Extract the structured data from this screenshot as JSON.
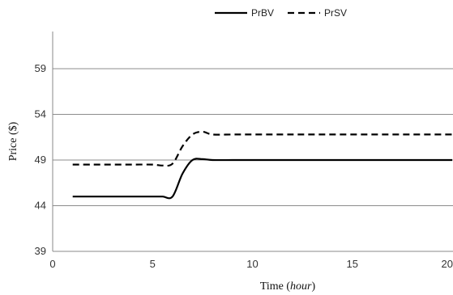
{
  "chart_data": {
    "type": "line",
    "xlabel": "Time",
    "xlabel_unit": "hour",
    "ylabel": "Price ($)",
    "xlim": [
      0,
      20
    ],
    "ylim": [
      39,
      64
    ],
    "x_ticks": [
      "0",
      "5",
      "10",
      "15",
      "20"
    ],
    "y_ticks": [
      "39",
      "44",
      "49",
      "54",
      "59"
    ],
    "grid": "horizontal",
    "legend": "top-center",
    "series": [
      {
        "name": "PrBV",
        "style": "solid",
        "color": "#000000",
        "x": [
          1,
          2,
          3,
          4,
          5,
          5.5,
          6,
          6.5,
          7,
          7.5,
          8,
          9,
          10,
          12,
          14,
          16,
          18,
          20
        ],
        "y": [
          45,
          45,
          45,
          45,
          45,
          45,
          45,
          47.5,
          49,
          49.1,
          49,
          49,
          49,
          49,
          49,
          49,
          49,
          49
        ]
      },
      {
        "name": "PrSV",
        "style": "dashed",
        "color": "#000000",
        "x": [
          1,
          2,
          3,
          4,
          5,
          5.5,
          6,
          6.5,
          7,
          7.5,
          8,
          9,
          10,
          12,
          14,
          16,
          18,
          20
        ],
        "y": [
          48.5,
          48.5,
          48.5,
          48.5,
          48.5,
          48.4,
          48.6,
          50.5,
          51.8,
          52.1,
          51.8,
          51.8,
          51.8,
          51.8,
          51.8,
          51.8,
          51.8,
          51.8
        ]
      }
    ]
  }
}
